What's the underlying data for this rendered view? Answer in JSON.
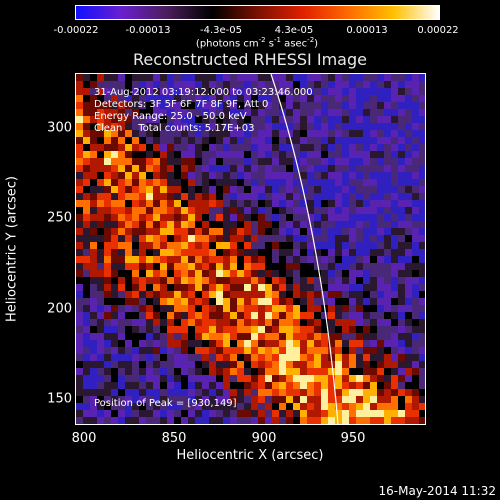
{
  "title": "Reconstructed RHESSI Image",
  "colorbar": {
    "ticks": [
      "-0.00022",
      "-0.00013",
      "-4.3e-05",
      "4.3e-05",
      "0.00013",
      "0.00022"
    ],
    "units": "(photons cm",
    "units_sup1": "-2",
    "units_mid": " s",
    "units_sup2": "-1",
    "units_tail": " asec",
    "units_sup3": "-2",
    "units_close": ")",
    "colors": [
      "#1010ff",
      "#6a1fd0",
      "#4a1f5a",
      "#000000",
      "#7a1000",
      "#e02000",
      "#ff6a00",
      "#ffc000",
      "#ffffff"
    ]
  },
  "info": {
    "time_range": "31-Aug-2012 03:19:12.000 to 03:23:46.000",
    "detectors": "Detectors: 3F 5F 6F 7F 8F 9F, Att 0",
    "energy": "Energy Range: 25.0 - 50.0 keV",
    "clean": "Clean     Total counts: 5.17E+03",
    "peak": "Position of Peak = [930,149]"
  },
  "axes": {
    "xlabel": "Heliocentric X (arcsec)",
    "ylabel": "Heliocentric Y (arcsec)",
    "xticks": [
      "800",
      "850",
      "900",
      "950"
    ],
    "yticks": [
      "300",
      "250",
      "200",
      "150"
    ]
  },
  "timestamp": "16-May-2014 11:32"
}
